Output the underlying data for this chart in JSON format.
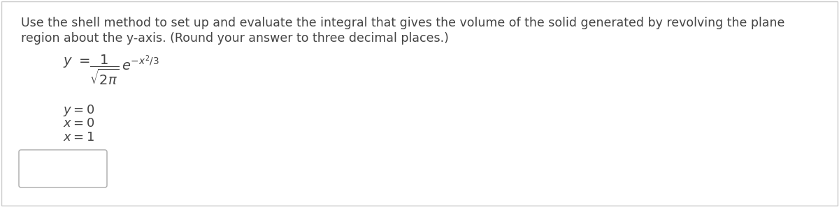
{
  "background_color": "#ffffff",
  "border_color": "#c8c8c8",
  "text_color": "#444444",
  "red_color": "#cc0000",
  "main_text_line1": "Use the shell method to set up and evaluate the integral that gives the volume of the solid generated by revolving the plane",
  "main_text_line2": "region about the y-axis. (Round your answer to three decimal places.)",
  "text_fontsize": 12.5,
  "formula_fontsize": 14,
  "conditions_fontsize": 13,
  "figsize": [
    12.0,
    2.97
  ],
  "dpi": 100
}
